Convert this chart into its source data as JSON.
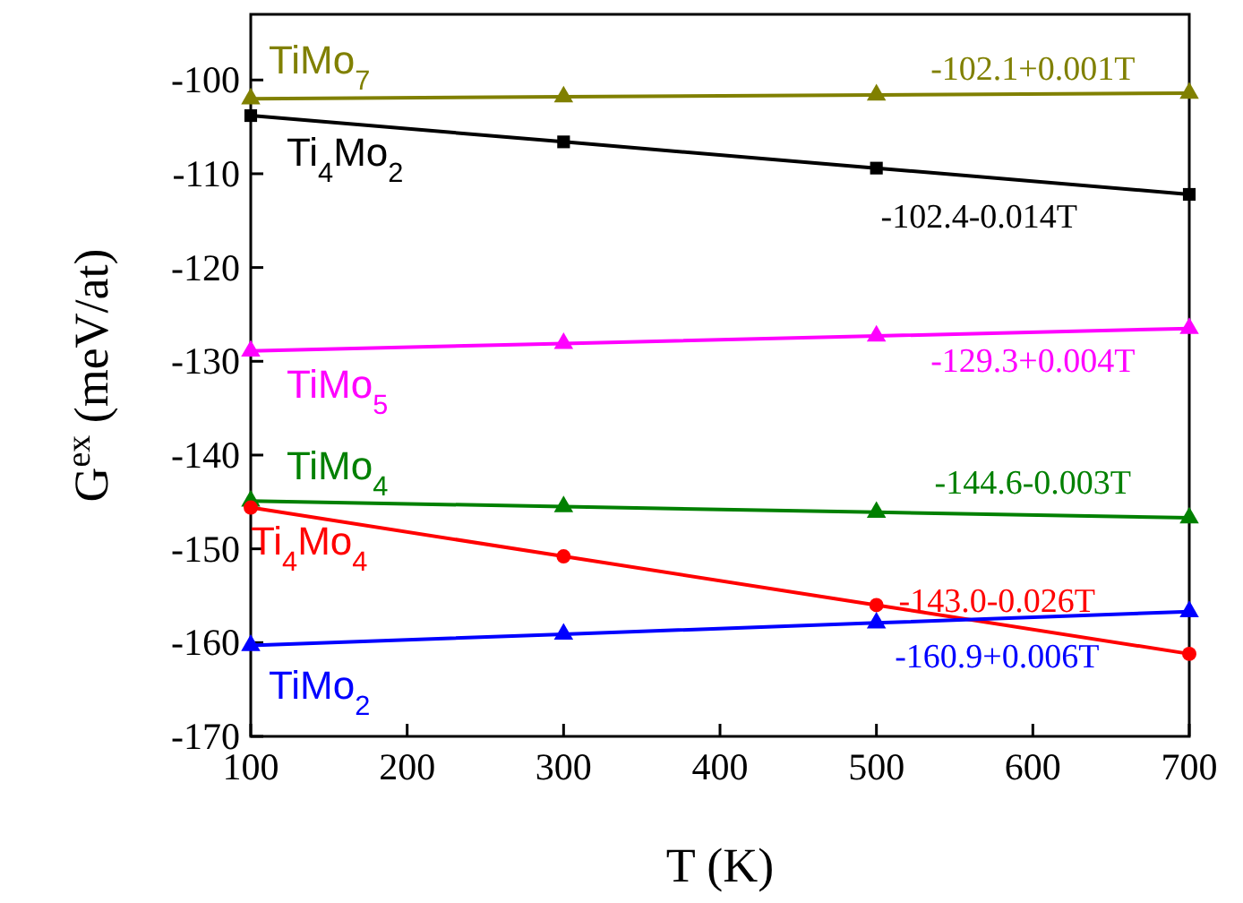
{
  "chart_data": {
    "type": "line",
    "xlabel": "T (K)",
    "ylabel": "G$^{ex}$  (meV/at)",
    "x": [
      100,
      300,
      500,
      700
    ],
    "xlim": [
      100,
      700
    ],
    "xticks": [
      100,
      200,
      300,
      400,
      500,
      600,
      700
    ],
    "ylim": [
      -170,
      -93
    ],
    "yticks": [
      -170,
      -160,
      -150,
      -140,
      -130,
      -120,
      -110,
      -100
    ],
    "grid": false,
    "line_style": "solid",
    "series": [
      {
        "name": "TiMo$_{7}$",
        "color": "#808000",
        "marker": "triangle",
        "values": [
          -102.0,
          -101.8,
          -101.6,
          -101.4
        ]
      },
      {
        "name": "Ti$_{4}$Mo$_{2}$",
        "color": "#000000",
        "marker": "square",
        "values": [
          -103.8,
          -106.6,
          -109.4,
          -112.2
        ]
      },
      {
        "name": "TiMo$_{5}$",
        "color": "#ff00ff",
        "marker": "triangle",
        "values": [
          -128.9,
          -128.1,
          -127.3,
          -126.5
        ]
      },
      {
        "name": "TiMo$_{4}$",
        "color": "#008000",
        "marker": "triangle",
        "values": [
          -144.9,
          -145.5,
          -146.1,
          -146.7
        ]
      },
      {
        "name": "Ti$_{4}$Mo$_{4}$",
        "color": "#ff0000",
        "marker": "circle",
        "values": [
          -145.6,
          -150.8,
          -156.0,
          -161.2
        ]
      },
      {
        "name": "TiMo$_{2}$",
        "color": "#0000ff",
        "marker": "triangle",
        "values": [
          -160.3,
          -159.1,
          -157.9,
          -156.7
        ]
      }
    ],
    "annotations": [
      "-102.1+0.001T",
      "-102.4-0.014T",
      "-129.3+0.004T",
      "-144.6-0.003T",
      "-143.0-0.026T",
      "-160.9+0.006T"
    ]
  }
}
